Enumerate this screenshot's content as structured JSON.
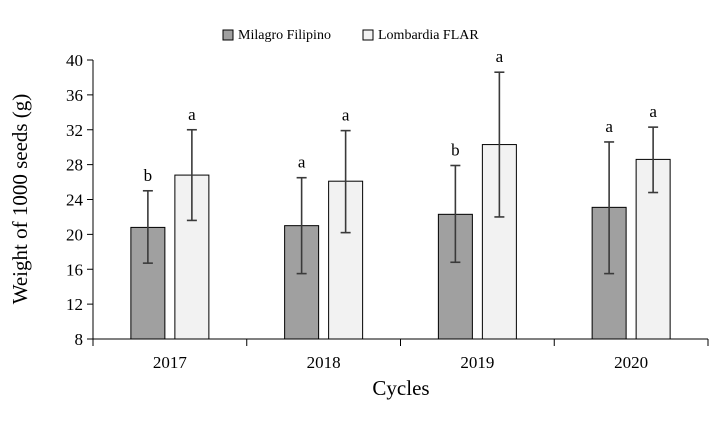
{
  "chart_data": {
    "type": "bar",
    "title": "",
    "xlabel": "Cycles",
    "ylabel": "Weight of 1000 seeds (g)",
    "ylim": [
      8,
      40
    ],
    "yticks": [
      8,
      12,
      16,
      20,
      24,
      28,
      32,
      36,
      40
    ],
    "categories": [
      "2017",
      "2018",
      "2019",
      "2020"
    ],
    "grid": false,
    "legend_position": "top-center",
    "series": [
      {
        "name": "Milagro Filipino",
        "color": "#a0a0a0",
        "values": [
          20.8,
          21.0,
          22.3,
          23.1
        ],
        "error_low": [
          16.7,
          15.5,
          16.8,
          15.5
        ],
        "error_high": [
          25.0,
          26.5,
          27.9,
          30.6
        ],
        "letters": [
          "b",
          "a",
          "b",
          "a"
        ]
      },
      {
        "name": "Lombardia FLAR",
        "color": "#f2f2f2",
        "values": [
          26.8,
          26.1,
          30.3,
          28.6
        ],
        "error_low": [
          21.6,
          20.2,
          22.0,
          24.8
        ],
        "error_high": [
          32.0,
          31.9,
          38.6,
          32.3
        ],
        "letters": [
          "a",
          "a",
          "a",
          "a"
        ]
      }
    ]
  }
}
